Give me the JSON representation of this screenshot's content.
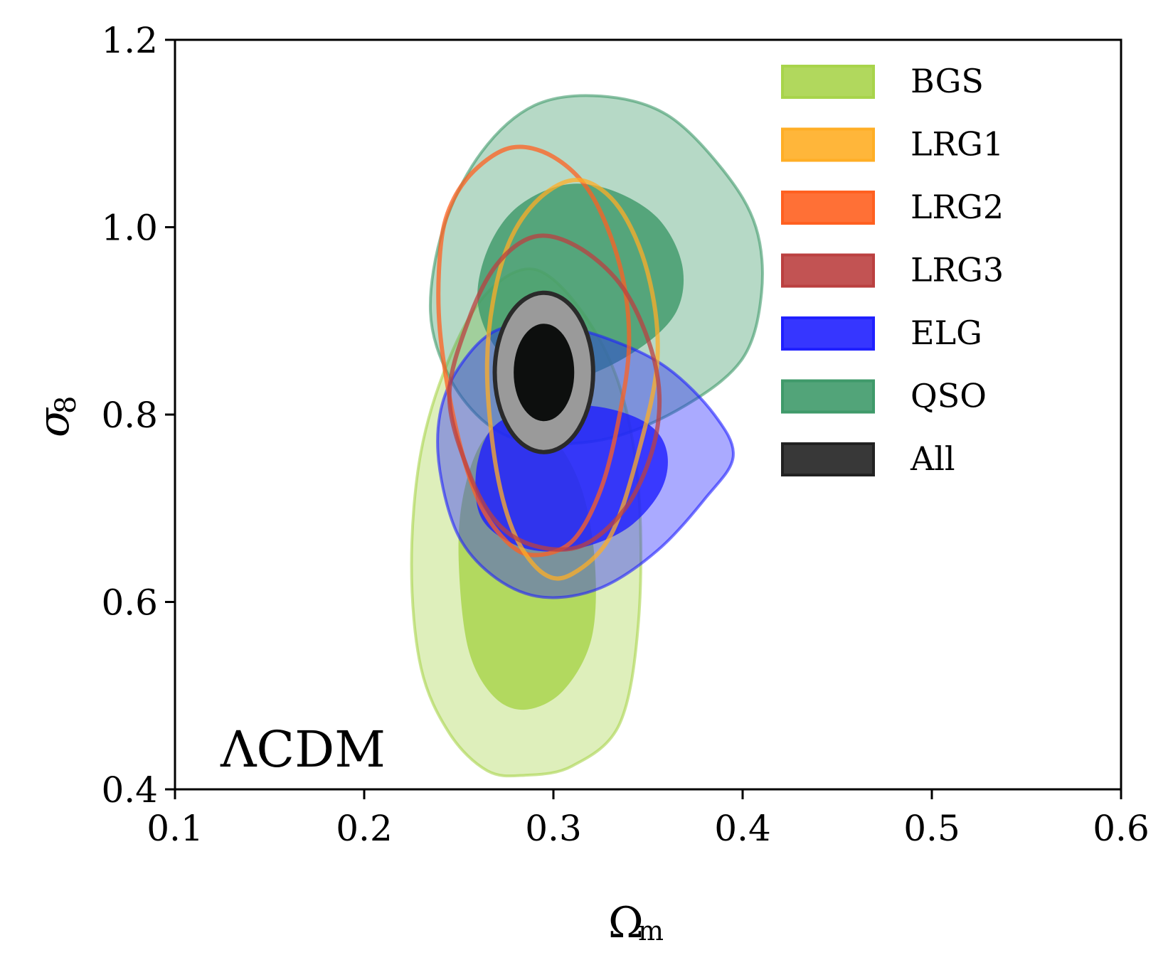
{
  "chart_data": {
    "type": "contour",
    "title": "",
    "xlabel": "Ω",
    "xlabel_sub": "m",
    "ylabel": "σ",
    "ylabel_sub": "8",
    "xlim": [
      0.1,
      0.6
    ],
    "ylim": [
      0.4,
      1.2
    ],
    "xticks": [
      0.1,
      0.2,
      0.3,
      0.4,
      0.5,
      0.6
    ],
    "yticks": [
      0.4,
      0.6,
      0.8,
      1.0,
      1.2
    ],
    "xtick_labels": [
      "0.1",
      "0.2",
      "0.3",
      "0.4",
      "0.5",
      "0.6"
    ],
    "ytick_labels": [
      "0.4",
      "0.6",
      "0.8",
      "1.0",
      "1.2"
    ],
    "annotation": "ΛCDM",
    "legend_position": "top-right",
    "series": [
      {
        "name": "BGS",
        "color": "#a8d44b",
        "style": "filled",
        "contour_95": [
          [
            0.225,
            0.64
          ],
          [
            0.23,
            0.53
          ],
          [
            0.245,
            0.46
          ],
          [
            0.265,
            0.42
          ],
          [
            0.285,
            0.415
          ],
          [
            0.31,
            0.425
          ],
          [
            0.335,
            0.47
          ],
          [
            0.345,
            0.58
          ],
          [
            0.345,
            0.72
          ],
          [
            0.335,
            0.83
          ],
          [
            0.315,
            0.91
          ],
          [
            0.29,
            0.955
          ],
          [
            0.265,
            0.93
          ],
          [
            0.245,
            0.86
          ],
          [
            0.23,
            0.76
          ]
        ],
        "contour_68": [
          [
            0.25,
            0.64
          ],
          [
            0.255,
            0.55
          ],
          [
            0.268,
            0.5
          ],
          [
            0.285,
            0.485
          ],
          [
            0.305,
            0.505
          ],
          [
            0.32,
            0.56
          ],
          [
            0.322,
            0.64
          ],
          [
            0.315,
            0.72
          ],
          [
            0.3,
            0.775
          ],
          [
            0.28,
            0.8
          ],
          [
            0.262,
            0.77
          ],
          [
            0.252,
            0.71
          ]
        ]
      },
      {
        "name": "LRG1",
        "color": "#ffae25",
        "style": "line",
        "contour_95": [
          [
            0.265,
            0.84
          ],
          [
            0.27,
            0.74
          ],
          [
            0.28,
            0.67
          ],
          [
            0.295,
            0.63
          ],
          [
            0.31,
            0.63
          ],
          [
            0.33,
            0.67
          ],
          [
            0.345,
            0.76
          ],
          [
            0.355,
            0.86
          ],
          [
            0.35,
            0.95
          ],
          [
            0.335,
            1.02
          ],
          [
            0.315,
            1.05
          ],
          [
            0.295,
            1.035
          ],
          [
            0.278,
            0.99
          ],
          [
            0.268,
            0.92
          ]
        ]
      },
      {
        "name": "LRG2",
        "color": "#ff6020",
        "style": "line",
        "contour_95": [
          [
            0.24,
            0.97
          ],
          [
            0.24,
            0.89
          ],
          [
            0.248,
            0.79
          ],
          [
            0.26,
            0.71
          ],
          [
            0.275,
            0.665
          ],
          [
            0.29,
            0.65
          ],
          [
            0.31,
            0.665
          ],
          [
            0.325,
            0.72
          ],
          [
            0.335,
            0.8
          ],
          [
            0.34,
            0.88
          ],
          [
            0.335,
            0.96
          ],
          [
            0.32,
            1.035
          ],
          [
            0.3,
            1.075
          ],
          [
            0.278,
            1.085
          ],
          [
            0.258,
            1.06
          ],
          [
            0.245,
            1.02
          ]
        ]
      },
      {
        "name": "LRG3",
        "color": "#bb4040",
        "style": "line",
        "contour_95": [
          [
            0.245,
            0.82
          ],
          [
            0.255,
            0.74
          ],
          [
            0.27,
            0.685
          ],
          [
            0.29,
            0.66
          ],
          [
            0.315,
            0.66
          ],
          [
            0.338,
            0.7
          ],
          [
            0.352,
            0.76
          ],
          [
            0.356,
            0.82
          ],
          [
            0.35,
            0.88
          ],
          [
            0.335,
            0.94
          ],
          [
            0.312,
            0.98
          ],
          [
            0.29,
            0.99
          ],
          [
            0.27,
            0.96
          ],
          [
            0.255,
            0.9
          ]
        ]
      },
      {
        "name": "ELG",
        "color": "#2020ff",
        "style": "filled",
        "contour_95": [
          [
            0.24,
            0.74
          ],
          [
            0.25,
            0.67
          ],
          [
            0.27,
            0.625
          ],
          [
            0.295,
            0.605
          ],
          [
            0.325,
            0.615
          ],
          [
            0.355,
            0.655
          ],
          [
            0.38,
            0.71
          ],
          [
            0.395,
            0.755
          ],
          [
            0.385,
            0.8
          ],
          [
            0.36,
            0.85
          ],
          [
            0.33,
            0.88
          ],
          [
            0.3,
            0.895
          ],
          [
            0.27,
            0.89
          ],
          [
            0.25,
            0.85
          ],
          [
            0.24,
            0.8
          ]
        ],
        "contour_68": [
          [
            0.26,
            0.7
          ],
          [
            0.27,
            0.672
          ],
          [
            0.29,
            0.655
          ],
          [
            0.315,
            0.658
          ],
          [
            0.34,
            0.68
          ],
          [
            0.357,
            0.72
          ],
          [
            0.36,
            0.76
          ],
          [
            0.35,
            0.79
          ],
          [
            0.325,
            0.808
          ],
          [
            0.295,
            0.808
          ],
          [
            0.27,
            0.79
          ],
          [
            0.26,
            0.75
          ]
        ]
      },
      {
        "name": "QSO",
        "color": "#3f9a6a",
        "style": "filled",
        "contour_95": [
          [
            0.235,
            0.91
          ],
          [
            0.245,
            0.84
          ],
          [
            0.265,
            0.79
          ],
          [
            0.29,
            0.77
          ],
          [
            0.33,
            0.775
          ],
          [
            0.37,
            0.81
          ],
          [
            0.4,
            0.86
          ],
          [
            0.41,
            0.93
          ],
          [
            0.407,
            1.0
          ],
          [
            0.39,
            1.06
          ],
          [
            0.36,
            1.12
          ],
          [
            0.325,
            1.14
          ],
          [
            0.29,
            1.13
          ],
          [
            0.262,
            1.08
          ],
          [
            0.242,
            1.0
          ]
        ],
        "contour_68": [
          [
            0.26,
            0.92
          ],
          [
            0.27,
            0.87
          ],
          [
            0.29,
            0.84
          ],
          [
            0.315,
            0.84
          ],
          [
            0.345,
            0.87
          ],
          [
            0.365,
            0.91
          ],
          [
            0.368,
            0.96
          ],
          [
            0.355,
            1.01
          ],
          [
            0.33,
            1.04
          ],
          [
            0.305,
            1.045
          ],
          [
            0.28,
            1.02
          ],
          [
            0.265,
            0.975
          ]
        ]
      },
      {
        "name": "All",
        "color": "#1a1a1a",
        "style": "filled",
        "center": [
          0.295,
          0.845
        ],
        "contour_95_radii": [
          0.026,
          0.085
        ],
        "contour_68_radii": [
          0.016,
          0.052
        ]
      }
    ]
  }
}
